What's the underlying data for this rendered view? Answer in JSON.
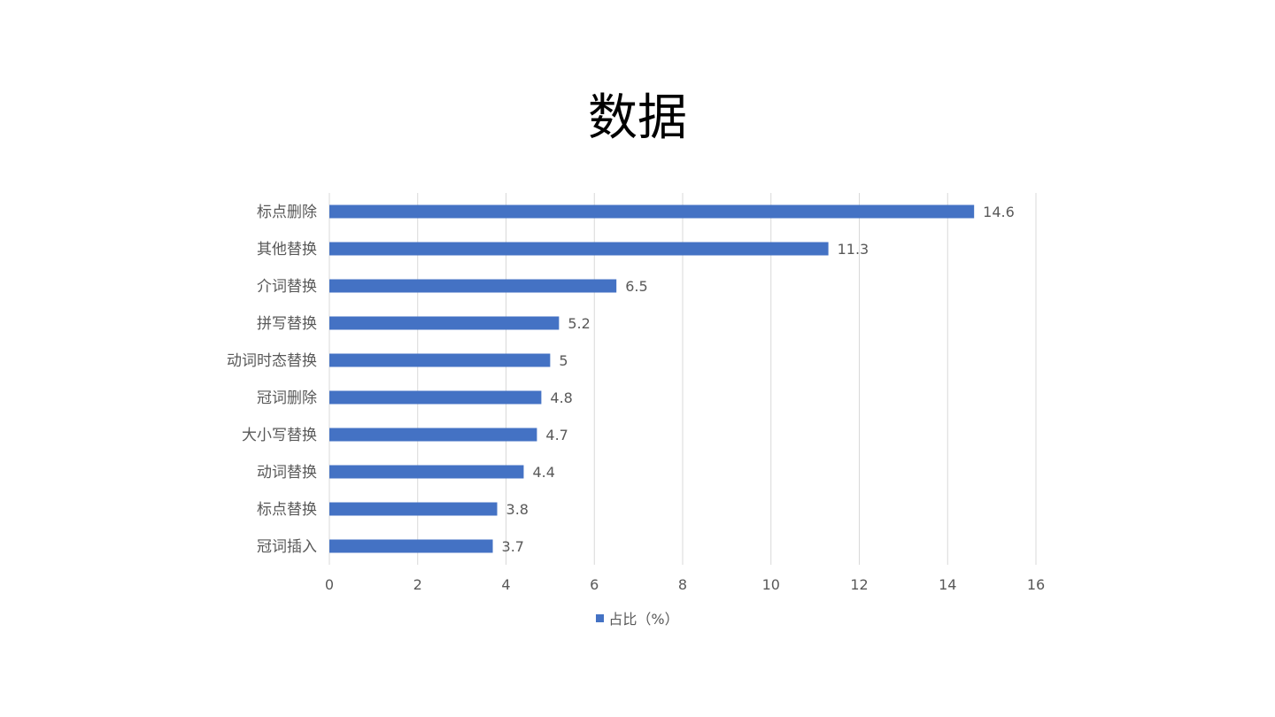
{
  "slide": {
    "title": "数据"
  },
  "chart_data": {
    "type": "bar",
    "orientation": "horizontal",
    "categories": [
      "标点删除",
      "其他替换",
      "介词替换",
      "拼写替换",
      "动词时态替换",
      "冠词删除",
      "大小写替换",
      "动词替换",
      "标点替换",
      "冠词插入"
    ],
    "series": [
      {
        "name": "占比（%）",
        "values": [
          14.6,
          11.3,
          6.5,
          5.2,
          5,
          4.8,
          4.7,
          4.4,
          3.8,
          3.7
        ],
        "color": "#4472C4"
      }
    ],
    "x_ticks": [
      0,
      2,
      4,
      6,
      8,
      10,
      12,
      14,
      16
    ],
    "xlim": [
      0,
      16
    ],
    "grid": true,
    "data_labels": true,
    "legend_position": "bottom",
    "colors": {
      "grid": "#D9D9D9",
      "axis_text": "#595959",
      "label_text": "#595959"
    }
  }
}
